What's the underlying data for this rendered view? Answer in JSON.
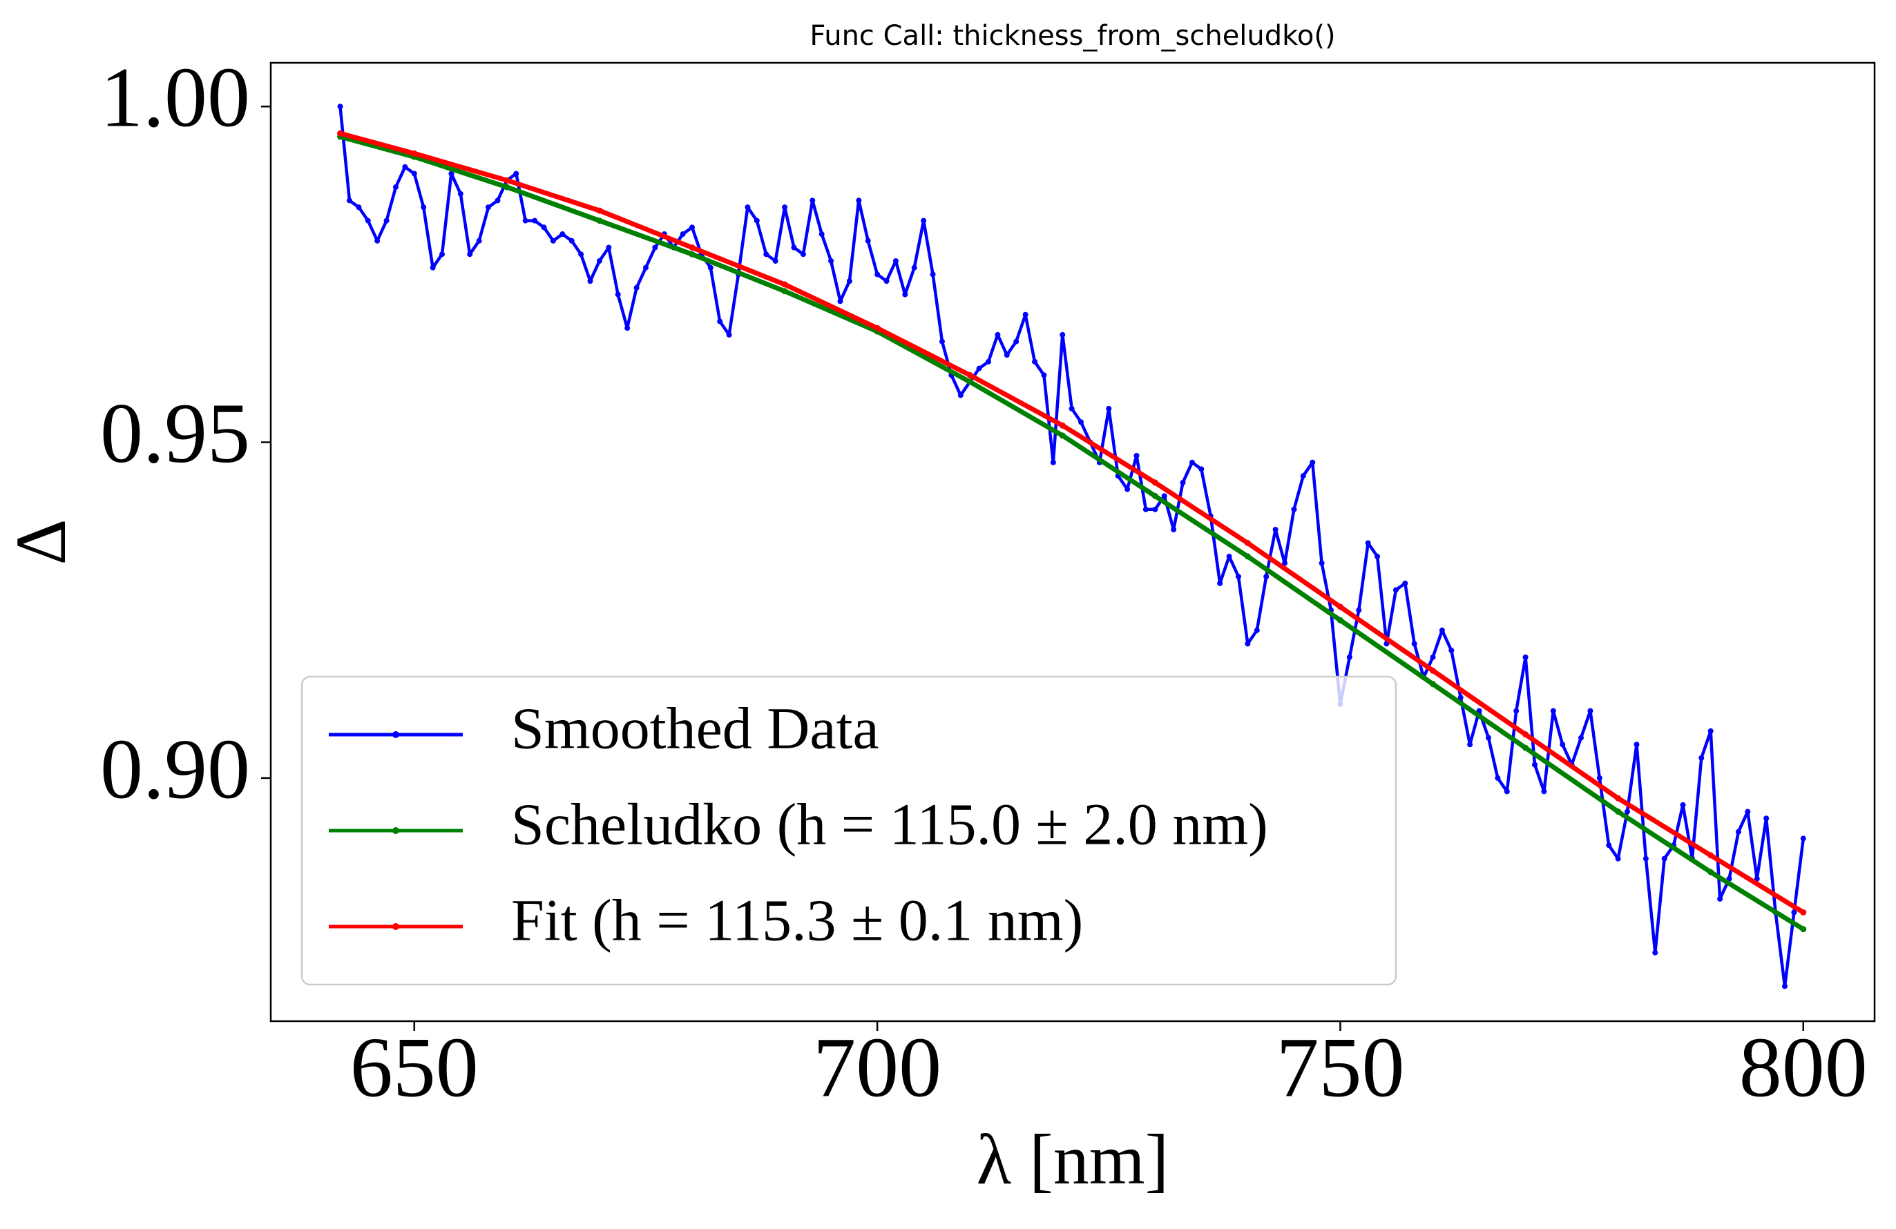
{
  "chart_data": {
    "type": "line",
    "title": "Func Call: thickness_from_scheludko()",
    "x_label": "λ [nm]",
    "y_label": "Δ",
    "xlim": [
      634.5,
      807.7
    ],
    "ylim": [
      0.8638,
      1.0065
    ],
    "xticks": [
      650,
      700,
      750,
      800
    ],
    "yticks": [
      {
        "value": 0.9,
        "label": "0.90"
      },
      {
        "value": 0.95,
        "label": "0.95"
      },
      {
        "value": 1.0,
        "label": "1.00"
      }
    ],
    "legend": "lower left",
    "grid": false,
    "series": [
      {
        "name": "Smoothed Data",
        "color": "#0000ff",
        "x": [
          642,
          643,
          644,
          645,
          646,
          647,
          648,
          649,
          650,
          651,
          652,
          653,
          654,
          655,
          656,
          657,
          658,
          659,
          660,
          661,
          662,
          663,
          664,
          665,
          666,
          667,
          668,
          669,
          670,
          671,
          672,
          673,
          674,
          675,
          676,
          677,
          678,
          679,
          680,
          681,
          682,
          683,
          684,
          685,
          686,
          687,
          688,
          689,
          690,
          691,
          692,
          693,
          694,
          695,
          696,
          697,
          698,
          699,
          700,
          701,
          702,
          703,
          704,
          705,
          706,
          707,
          708,
          709,
          710,
          711,
          712,
          713,
          714,
          715,
          716,
          717,
          718,
          719,
          720,
          721,
          722,
          723,
          724,
          725,
          726,
          727,
          728,
          729,
          730,
          731,
          732,
          733,
          734,
          735,
          736,
          737,
          738,
          739,
          740,
          741,
          742,
          743,
          744,
          745,
          746,
          747,
          748,
          749,
          750,
          751,
          752,
          753,
          754,
          755,
          756,
          757,
          758,
          759,
          760,
          761,
          762,
          763,
          764,
          765,
          766,
          767,
          768,
          769,
          770,
          771,
          772,
          773,
          774,
          775,
          776,
          777,
          778,
          779,
          780,
          781,
          782,
          783,
          784,
          785,
          786,
          787,
          788,
          789,
          790,
          791,
          792,
          793,
          794,
          795,
          796,
          797,
          798,
          799,
          800
        ],
        "values": [
          1.0,
          0.986,
          0.985,
          0.983,
          0.98,
          0.983,
          0.988,
          0.991,
          0.99,
          0.985,
          0.976,
          0.978,
          0.99,
          0.987,
          0.978,
          0.98,
          0.985,
          0.986,
          0.989,
          0.99,
          0.983,
          0.983,
          0.982,
          0.98,
          0.981,
          0.98,
          0.978,
          0.974,
          0.977,
          0.979,
          0.972,
          0.967,
          0.973,
          0.976,
          0.979,
          0.981,
          0.979,
          0.981,
          0.982,
          0.978,
          0.976,
          0.968,
          0.966,
          0.975,
          0.985,
          0.983,
          0.978,
          0.977,
          0.985,
          0.979,
          0.978,
          0.986,
          0.981,
          0.977,
          0.971,
          0.974,
          0.986,
          0.98,
          0.975,
          0.974,
          0.977,
          0.972,
          0.976,
          0.983,
          0.975,
          0.965,
          0.96,
          0.957,
          0.959,
          0.961,
          0.962,
          0.966,
          0.963,
          0.965,
          0.969,
          0.962,
          0.96,
          0.947,
          0.966,
          0.955,
          0.953,
          0.95,
          0.947,
          0.955,
          0.945,
          0.943,
          0.948,
          0.94,
          0.94,
          0.942,
          0.937,
          0.944,
          0.947,
          0.946,
          0.939,
          0.929,
          0.933,
          0.93,
          0.92,
          0.922,
          0.93,
          0.937,
          0.932,
          0.94,
          0.945,
          0.947,
          0.932,
          0.925,
          0.911,
          0.918,
          0.925,
          0.935,
          0.933,
          0.92,
          0.928,
          0.929,
          0.92,
          0.915,
          0.918,
          0.922,
          0.919,
          0.912,
          0.905,
          0.91,
          0.906,
          0.9,
          0.898,
          0.91,
          0.918,
          0.902,
          0.898,
          0.91,
          0.905,
          0.902,
          0.906,
          0.91,
          0.9,
          0.89,
          0.888,
          0.895,
          0.905,
          0.888,
          0.874,
          0.888,
          0.89,
          0.896,
          0.888,
          0.903,
          0.907,
          0.882,
          0.885,
          0.892,
          0.895,
          0.885,
          0.894,
          0.88,
          0.869,
          0.88,
          0.891
        ]
      },
      {
        "name": "Scheludko (h = 115.0 ± 2.0 nm)",
        "color": "#008000",
        "x": [
          642,
          650,
          660,
          670,
          680,
          690,
          700,
          710,
          720,
          730,
          740,
          750,
          760,
          770,
          780,
          790,
          800
        ],
        "values": [
          0.9955,
          0.9925,
          0.988,
          0.983,
          0.978,
          0.9725,
          0.9665,
          0.959,
          0.951,
          0.942,
          0.933,
          0.9235,
          0.914,
          0.9045,
          0.895,
          0.886,
          0.8775
        ]
      },
      {
        "name": "Fit (h = 115.3 ± 0.1 nm)",
        "color": "#ff0000",
        "x": [
          642,
          650,
          660,
          670,
          680,
          690,
          700,
          710,
          720,
          730,
          740,
          750,
          760,
          770,
          780,
          790,
          800
        ],
        "values": [
          0.996,
          0.993,
          0.989,
          0.9845,
          0.979,
          0.9735,
          0.967,
          0.96,
          0.9525,
          0.944,
          0.935,
          0.9255,
          0.916,
          0.9065,
          0.897,
          0.8885,
          0.88
        ]
      }
    ]
  }
}
